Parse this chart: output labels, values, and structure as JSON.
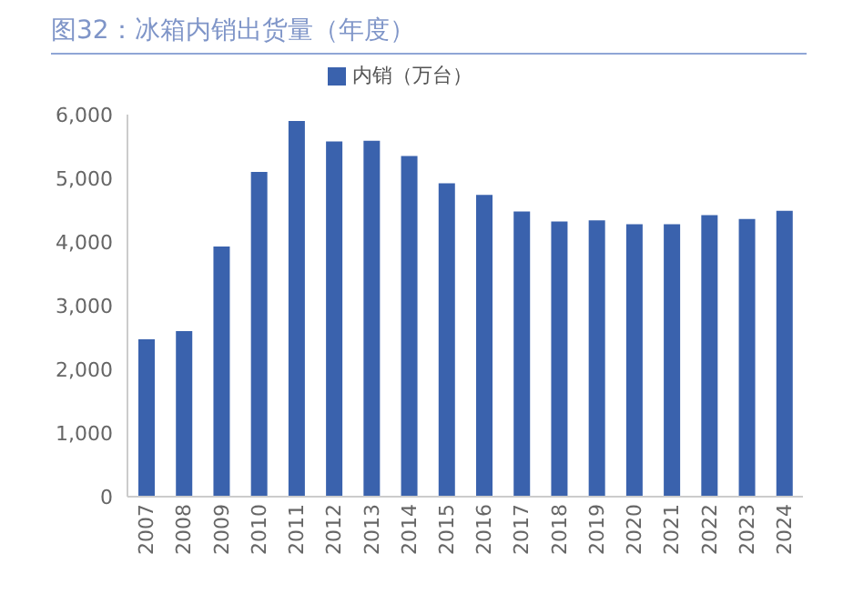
{
  "chart_data": {
    "type": "bar",
    "title": "图32：冰箱内销出货量（年度）",
    "categories": [
      "2007",
      "2008",
      "2009",
      "2010",
      "2011",
      "2012",
      "2013",
      "2014",
      "2015",
      "2016",
      "2017",
      "2018",
      "2019",
      "2020",
      "2021",
      "2022",
      "2023",
      "2024"
    ],
    "series": [
      {
        "name": "内销（万台）",
        "color": "#3a62ad",
        "values": [
          2470,
          2600,
          3930,
          5100,
          5900,
          5580,
          5590,
          5350,
          4920,
          4740,
          4480,
          4320,
          4340,
          4280,
          4280,
          4420,
          4360,
          4490
        ]
      }
    ],
    "ylim": [
      0,
      6000
    ],
    "yticks": [
      {
        "value": 0,
        "label": "0"
      },
      {
        "value": 1000,
        "label": "1,000"
      },
      {
        "value": 2000,
        "label": "2,000"
      },
      {
        "value": 3000,
        "label": "3,000"
      },
      {
        "value": 4000,
        "label": "4,000"
      },
      {
        "value": 5000,
        "label": "5,000"
      },
      {
        "value": 6000,
        "label": "6,000"
      }
    ],
    "legend": "top",
    "grid": false
  }
}
